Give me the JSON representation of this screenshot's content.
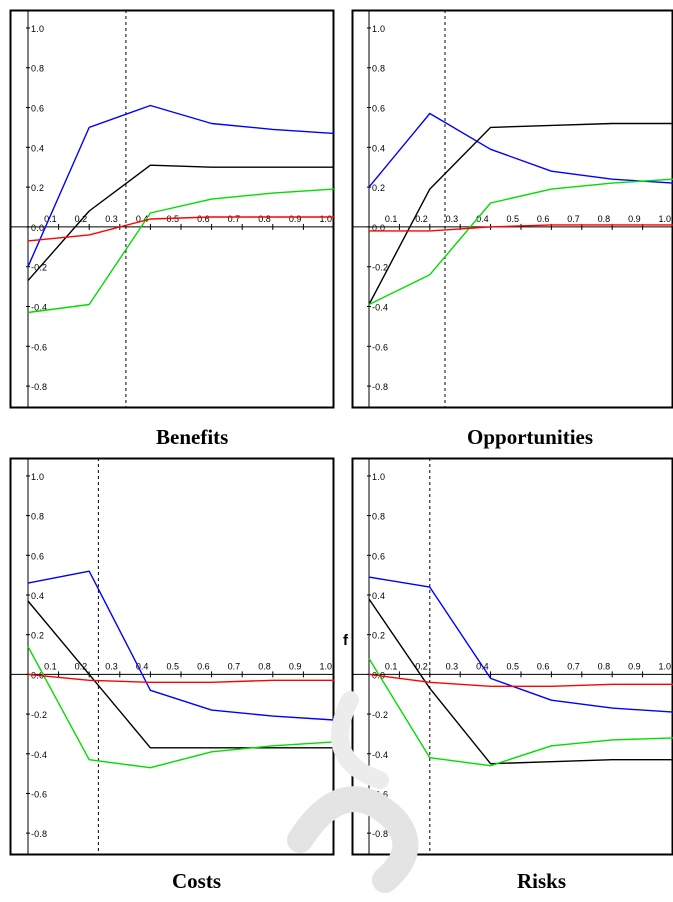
{
  "figure": {
    "captions": [
      "Benefits",
      "Opportunities",
      "Costs",
      "Risks"
    ],
    "stray_glyph": "f"
  },
  "colors": {
    "blue": "#0000ff",
    "black": "#000000",
    "green": "#00dd00",
    "red": "#ff0000"
  },
  "chart_data": [
    {
      "type": "line",
      "caption": "Benefits",
      "xlim": [
        0,
        1.0
      ],
      "ylim": [
        -0.9,
        1.05
      ],
      "x_ticks": [
        "0.1",
        "0.2",
        "0.3",
        "0.4",
        "0.5",
        "0.6",
        "0.7",
        "0.8",
        "0.9",
        "1.0"
      ],
      "y_ticks": [
        "1.0",
        "0.8",
        "0.6",
        "0.4",
        "0.2",
        "0.0",
        "-0.2",
        "-0.4",
        "-0.6",
        "-0.8"
      ],
      "dashed_x": 0.32,
      "x": [
        0,
        0.2,
        0.4,
        0.6,
        0.8,
        1.0
      ],
      "series": [
        {
          "color": "blue",
          "values": [
            -0.2,
            0.5,
            0.61,
            0.52,
            0.49,
            0.47
          ]
        },
        {
          "color": "black",
          "values": [
            -0.27,
            0.08,
            0.31,
            0.3,
            0.3,
            0.3
          ]
        },
        {
          "color": "green",
          "values": [
            -0.43,
            -0.39,
            0.07,
            0.14,
            0.17,
            0.19
          ]
        },
        {
          "color": "red",
          "values": [
            -0.07,
            -0.04,
            0.04,
            0.05,
            0.05,
            0.05
          ]
        }
      ]
    },
    {
      "type": "line",
      "caption": "Opportunities",
      "xlim": [
        0,
        1.0
      ],
      "ylim": [
        -0.9,
        1.05
      ],
      "x_ticks": [
        "0.1",
        "0.2",
        "0.3",
        "0.4",
        "0.5",
        "0.6",
        "0.7",
        "0.8",
        "0.9",
        "1.0"
      ],
      "y_ticks": [
        "1.0",
        "0.8",
        "0.6",
        "0.4",
        "0.2",
        "0.0",
        "-0.2",
        "-0.4",
        "-0.6",
        "-0.8"
      ],
      "dashed_x": 0.25,
      "x": [
        0,
        0.2,
        0.4,
        0.6,
        0.8,
        1.0
      ],
      "series": [
        {
          "color": "blue",
          "values": [
            0.2,
            0.57,
            0.39,
            0.28,
            0.24,
            0.22
          ]
        },
        {
          "color": "black",
          "values": [
            -0.39,
            0.19,
            0.5,
            0.51,
            0.52,
            0.52
          ]
        },
        {
          "color": "green",
          "values": [
            -0.39,
            -0.24,
            0.12,
            0.19,
            0.22,
            0.24
          ]
        },
        {
          "color": "red",
          "values": [
            -0.02,
            -0.02,
            0.0,
            0.01,
            0.01,
            0.01
          ]
        }
      ]
    },
    {
      "type": "line",
      "caption": "Costs",
      "xlim": [
        0,
        1.0
      ],
      "ylim": [
        -0.9,
        1.05
      ],
      "x_ticks": [
        "0.1",
        "0.2",
        "0.3",
        "0.4",
        "0.5",
        "0.6",
        "0.7",
        "0.8",
        "0.9",
        "1.0"
      ],
      "y_ticks": [
        "1.0",
        "0.8",
        "0.6",
        "0.4",
        "0.2",
        "0.0",
        "-0.2",
        "-0.4",
        "-0.6",
        "-0.8"
      ],
      "dashed_x": 0.23,
      "x": [
        0,
        0.2,
        0.4,
        0.6,
        0.8,
        1.0
      ],
      "series": [
        {
          "color": "blue",
          "values": [
            0.46,
            0.52,
            -0.08,
            -0.18,
            -0.21,
            -0.23
          ]
        },
        {
          "color": "black",
          "values": [
            0.37,
            0.0,
            -0.37,
            -0.37,
            -0.37,
            -0.37
          ]
        },
        {
          "color": "green",
          "values": [
            0.14,
            -0.43,
            -0.47,
            -0.39,
            -0.36,
            -0.34
          ]
        },
        {
          "color": "red",
          "values": [
            0.0,
            -0.03,
            -0.04,
            -0.04,
            -0.03,
            -0.03
          ]
        }
      ]
    },
    {
      "type": "line",
      "caption": "Risks",
      "xlim": [
        0,
        1.0
      ],
      "ylim": [
        -0.9,
        1.05
      ],
      "x_ticks": [
        "0.1",
        "0.2",
        "0.3",
        "0.4",
        "0.5",
        "0.6",
        "0.7",
        "0.8",
        "0.9",
        "1.0"
      ],
      "y_ticks": [
        "1.0",
        "0.8",
        "0.6",
        "0.4",
        "0.2",
        "0.0",
        "-0.2",
        "-0.4",
        "-0.6",
        "-0.8"
      ],
      "dashed_x": 0.2,
      "x": [
        0,
        0.2,
        0.4,
        0.6,
        0.8,
        1.0
      ],
      "series": [
        {
          "color": "blue",
          "values": [
            0.49,
            0.44,
            -0.02,
            -0.13,
            -0.17,
            -0.19
          ]
        },
        {
          "color": "black",
          "values": [
            0.38,
            -0.07,
            -0.45,
            -0.44,
            -0.43,
            -0.43
          ]
        },
        {
          "color": "green",
          "values": [
            0.08,
            -0.42,
            -0.46,
            -0.36,
            -0.33,
            -0.32
          ]
        },
        {
          "color": "red",
          "values": [
            0.0,
            -0.04,
            -0.06,
            -0.06,
            -0.05,
            -0.05
          ]
        }
      ]
    }
  ]
}
